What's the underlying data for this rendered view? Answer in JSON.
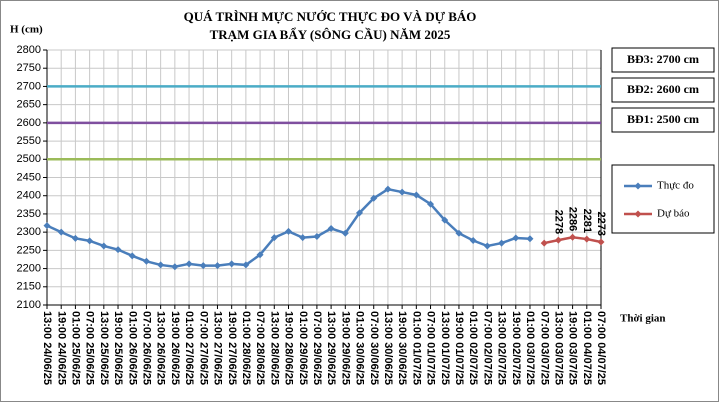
{
  "chart_data": {
    "type": "line",
    "title": "QUÁ TRÌNH MỰC NƯỚC THỰC ĐO VÀ DỰ BÁO",
    "subtitle": "TRẠM GIA BẨY (SÔNG CẦU) NĂM 2025",
    "y_label": "H (cm)",
    "x_label": "Thời gian",
    "categories": [
      "13:00 24/06/25",
      "19:00 24/06/25",
      "01:00 25/06/25",
      "07:00 25/06/25",
      "13:00 25/06/25",
      "19:00 25/06/25",
      "01:00 26/06/25",
      "07:00 26/06/25",
      "13:00 26/06/25",
      "19:00 26/06/25",
      "01:00 27/06/25",
      "07:00 27/06/25",
      "13:00 27/06/25",
      "19:00 27/06/25",
      "01:00 28/06/25",
      "07:00 28/06/25",
      "13:00 28/06/25",
      "19:00 28/06/25",
      "01:00 29/06/25",
      "07:00 29/06/25",
      "13:00 29/06/25",
      "19:00 29/06/25",
      "01:00 30/06/25",
      "07:00 30/06/25",
      "13:00 30/06/25",
      "19:00 30/06/25",
      "01:00 01/07/25",
      "07:00 01/07/25",
      "13:00 01/07/25",
      "19:00 01/07/25",
      "01:00 02/07/25",
      "07:00 02/07/25",
      "13:00 02/07/25",
      "19:00 02/07/25",
      "01:00 03/07/25",
      "07:00 03/07/25",
      "13:00 03/07/25",
      "19:00 03/07/25",
      "01:00 04/07/25",
      "07:00 04/07/25"
    ],
    "series": [
      {
        "name": "Thực đo",
        "color": "#4a7ebb",
        "values": [
          2318,
          2300,
          2283,
          2276,
          2262,
          2252,
          2235,
          2220,
          2210,
          2205,
          2213,
          2208,
          2208,
          2213,
          2210,
          2238,
          2285,
          2302,
          2285,
          2288,
          2310,
          2297,
          2353,
          2393,
          2418,
          2410,
          2402,
          2377,
          2333,
          2297,
          2277,
          2262,
          2270,
          2284,
          2282,
          null,
          null,
          null,
          null,
          null
        ]
      },
      {
        "name": "Dự báo",
        "color": "#c0504d",
        "values": [
          null,
          null,
          null,
          null,
          null,
          null,
          null,
          null,
          null,
          null,
          null,
          null,
          null,
          null,
          null,
          null,
          null,
          null,
          null,
          null,
          null,
          null,
          null,
          null,
          null,
          null,
          null,
          null,
          null,
          null,
          null,
          null,
          null,
          null,
          null,
          2270,
          2278,
          2286,
          2281,
          2273
        ],
        "value_labels": [
          null,
          null,
          null,
          null,
          null,
          null,
          null,
          null,
          null,
          null,
          null,
          null,
          null,
          null,
          null,
          null,
          null,
          null,
          null,
          null,
          null,
          null,
          null,
          null,
          null,
          null,
          null,
          null,
          null,
          null,
          null,
          null,
          null,
          null,
          null,
          null,
          "2278",
          "2286",
          "2281",
          "2273"
        ]
      }
    ],
    "reference_lines": [
      {
        "name": "BĐ3: 2700 cm",
        "value": 2700,
        "color": "#4bacc6"
      },
      {
        "name": "BĐ2: 2600 cm",
        "value": 2600,
        "color": "#7f4f9f"
      },
      {
        "name": "BĐ1: 2500 cm",
        "value": 2500,
        "color": "#9bbb59"
      }
    ],
    "ylim": [
      2100,
      2800
    ],
    "yticks": [
      2100,
      2150,
      2200,
      2250,
      2300,
      2350,
      2400,
      2450,
      2500,
      2550,
      2600,
      2650,
      2700,
      2750,
      2800
    ],
    "grid": true
  }
}
